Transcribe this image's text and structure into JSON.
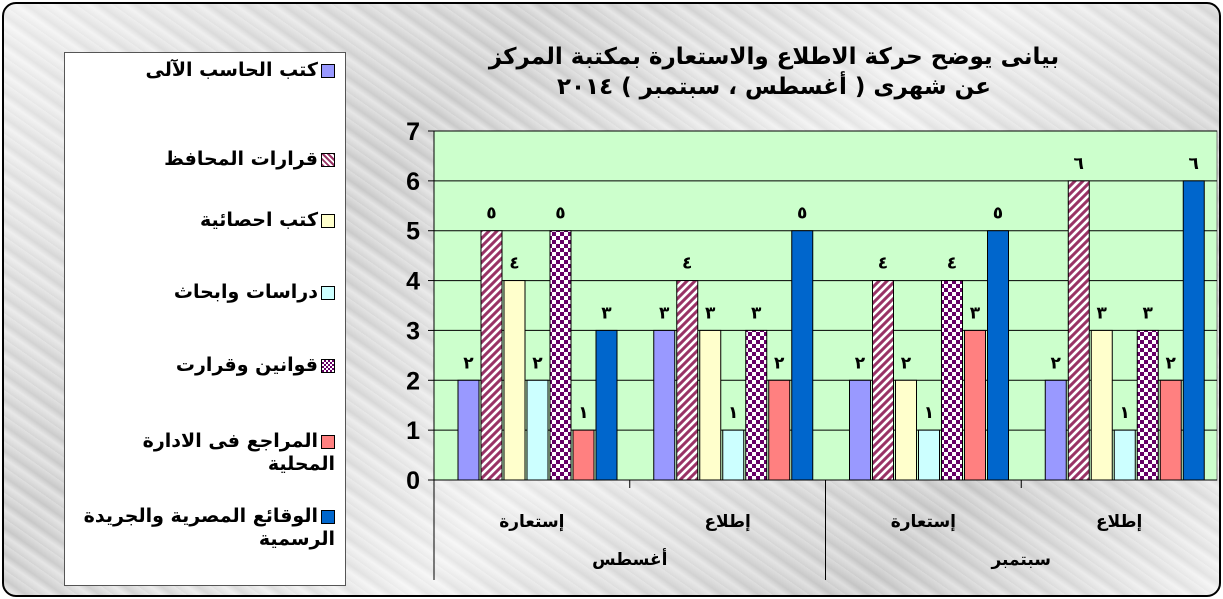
{
  "chart_data": {
    "type": "bar",
    "title_lines": [
      "بيانى يوضح حركة الاطلاع والاستعارة بمكتبة المركز",
      "عن شهرى ( أغسطس ، سبتمبر ) ٢٠١٤"
    ],
    "categories": [
      "إستعارة",
      "إطلاع",
      "إستعارة",
      "إطلاع"
    ],
    "groups": [
      "أغسطس",
      "سبتمبر"
    ],
    "y_ticks": [
      "0",
      "1",
      "2",
      "3",
      "4",
      "5",
      "6",
      "7"
    ],
    "ylim": [
      0,
      7
    ],
    "grid": "horizontal",
    "legend_position": "left",
    "plot_background": "#ccffcc",
    "series": [
      {
        "name": "كتب الحاسب الآلى",
        "color": "#9999ff",
        "pattern": "solid",
        "values": [
          2,
          3,
          2,
          2
        ],
        "labels": [
          "٢",
          "٣",
          "٢",
          "٢"
        ]
      },
      {
        "name": "قرارات المحافظ",
        "color": "#993366",
        "pattern": "diagonal",
        "values": [
          5,
          4,
          4,
          6
        ],
        "labels": [
          "٥",
          "٤",
          "٤",
          "٦"
        ]
      },
      {
        "name": "كتب احصائية",
        "color": "#ffffcc",
        "pattern": "solid",
        "values": [
          4,
          3,
          2,
          3
        ],
        "labels": [
          "٤",
          "٣",
          "٢",
          "٣"
        ]
      },
      {
        "name": "دراسات وابحاث",
        "color": "#ccffff",
        "pattern": "solid",
        "values": [
          2,
          1,
          1,
          1
        ],
        "labels": [
          "٢",
          "١",
          "١",
          "١"
        ]
      },
      {
        "name": "قوانين وقرارت",
        "color": "#660066",
        "pattern": "checker",
        "values": [
          5,
          3,
          4,
          3
        ],
        "labels": [
          "٥",
          "٣",
          "٤",
          "٣"
        ]
      },
      {
        "name": "المراجع فى الادارة المحلية",
        "color": "#ff8080",
        "pattern": "solid",
        "values": [
          1,
          2,
          3,
          2
        ],
        "labels": [
          "١",
          "٢",
          "٣",
          "٢"
        ]
      },
      {
        "name": "الوقائع المصرية والجريدة الرسمية",
        "color": "#0066cc",
        "pattern": "solid",
        "values": [
          3,
          5,
          5,
          6
        ],
        "labels": [
          "٣",
          "٥",
          "٥",
          "٦"
        ]
      }
    ]
  }
}
